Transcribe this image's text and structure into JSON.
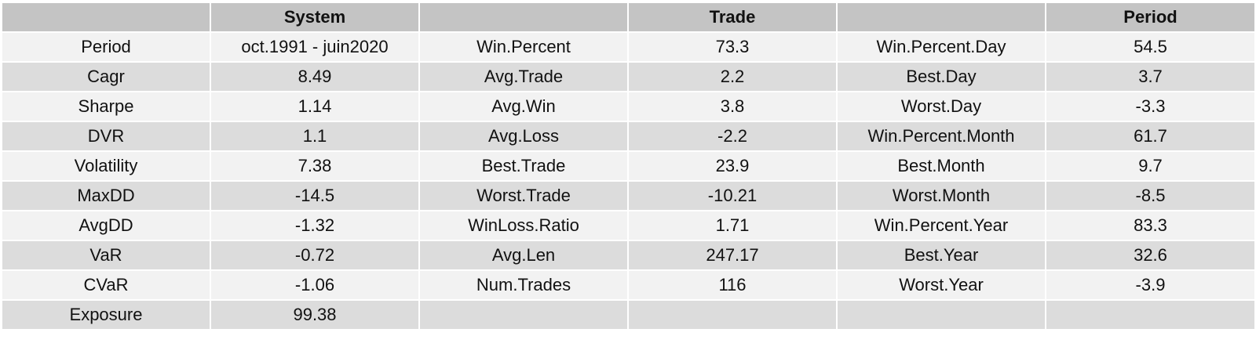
{
  "headers": [
    "",
    "System",
    "",
    "Trade",
    "",
    "Period"
  ],
  "rows": [
    [
      "Period",
      "oct.1991 - juin2020",
      "Win.Percent",
      "73.3",
      "Win.Percent.Day",
      "54.5"
    ],
    [
      "Cagr",
      "8.49",
      "Avg.Trade",
      "2.2",
      "Best.Day",
      "3.7"
    ],
    [
      "Sharpe",
      "1.14",
      "Avg.Win",
      "3.8",
      "Worst.Day",
      "-3.3"
    ],
    [
      "DVR",
      "1.1",
      "Avg.Loss",
      "-2.2",
      "Win.Percent.Month",
      "61.7"
    ],
    [
      "Volatility",
      "7.38",
      "Best.Trade",
      "23.9",
      "Best.Month",
      "9.7"
    ],
    [
      "MaxDD",
      "-14.5",
      "Worst.Trade",
      "-10.21",
      "Worst.Month",
      "-8.5"
    ],
    [
      "AvgDD",
      "-1.32",
      "WinLoss.Ratio",
      "1.71",
      "Win.Percent.Year",
      "83.3"
    ],
    [
      "VaR",
      "-0.72",
      "Avg.Len",
      "247.17",
      "Best.Year",
      "32.6"
    ],
    [
      "CVaR",
      "-1.06",
      "Num.Trades",
      "116",
      "Worst.Year",
      "-3.9"
    ],
    [
      "Exposure",
      "99.38",
      "",
      "",
      "",
      ""
    ]
  ]
}
